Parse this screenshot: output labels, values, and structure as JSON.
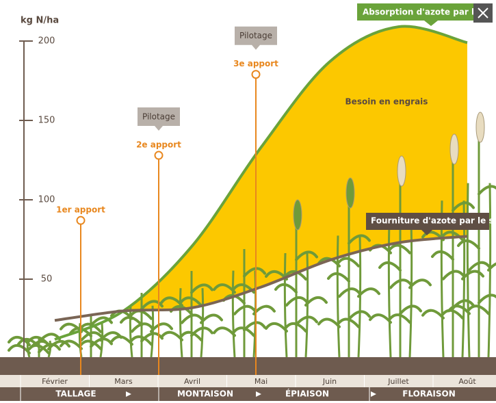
{
  "chart_data": {
    "type": "line",
    "y_label": "kg N/ha",
    "categories": [
      "Février",
      "Mars",
      "Avril",
      "Mai",
      "Juin",
      "Juillet",
      "Août"
    ],
    "ylim": [
      0,
      200
    ],
    "yticks": [
      50,
      100,
      150,
      200
    ],
    "series": [
      {
        "name": "Absorption d'azote par la culture",
        "color": "#6aa33a",
        "values": [
          12,
          30,
          71,
          133,
          187,
          209,
          199
        ]
      },
      {
        "name": "Fourniture d'azote par le sol",
        "color": "#7a6555",
        "values": [
          24,
          30,
          32,
          45,
          62,
          73,
          77
        ]
      }
    ],
    "area_label": "Besoin en engrais",
    "area_color": "#fcc800",
    "applications": [
      {
        "label": "1er apport",
        "value": 87
      },
      {
        "label": "2e apport",
        "value": 128,
        "tag": "Pilotage"
      },
      {
        "label": "3e apport",
        "value": 179,
        "tag": "Pilotage"
      }
    ],
    "stages": [
      "TALLAGE",
      "MONTAISON",
      "ÉPIAISON",
      "FLORAISON"
    ]
  }
}
